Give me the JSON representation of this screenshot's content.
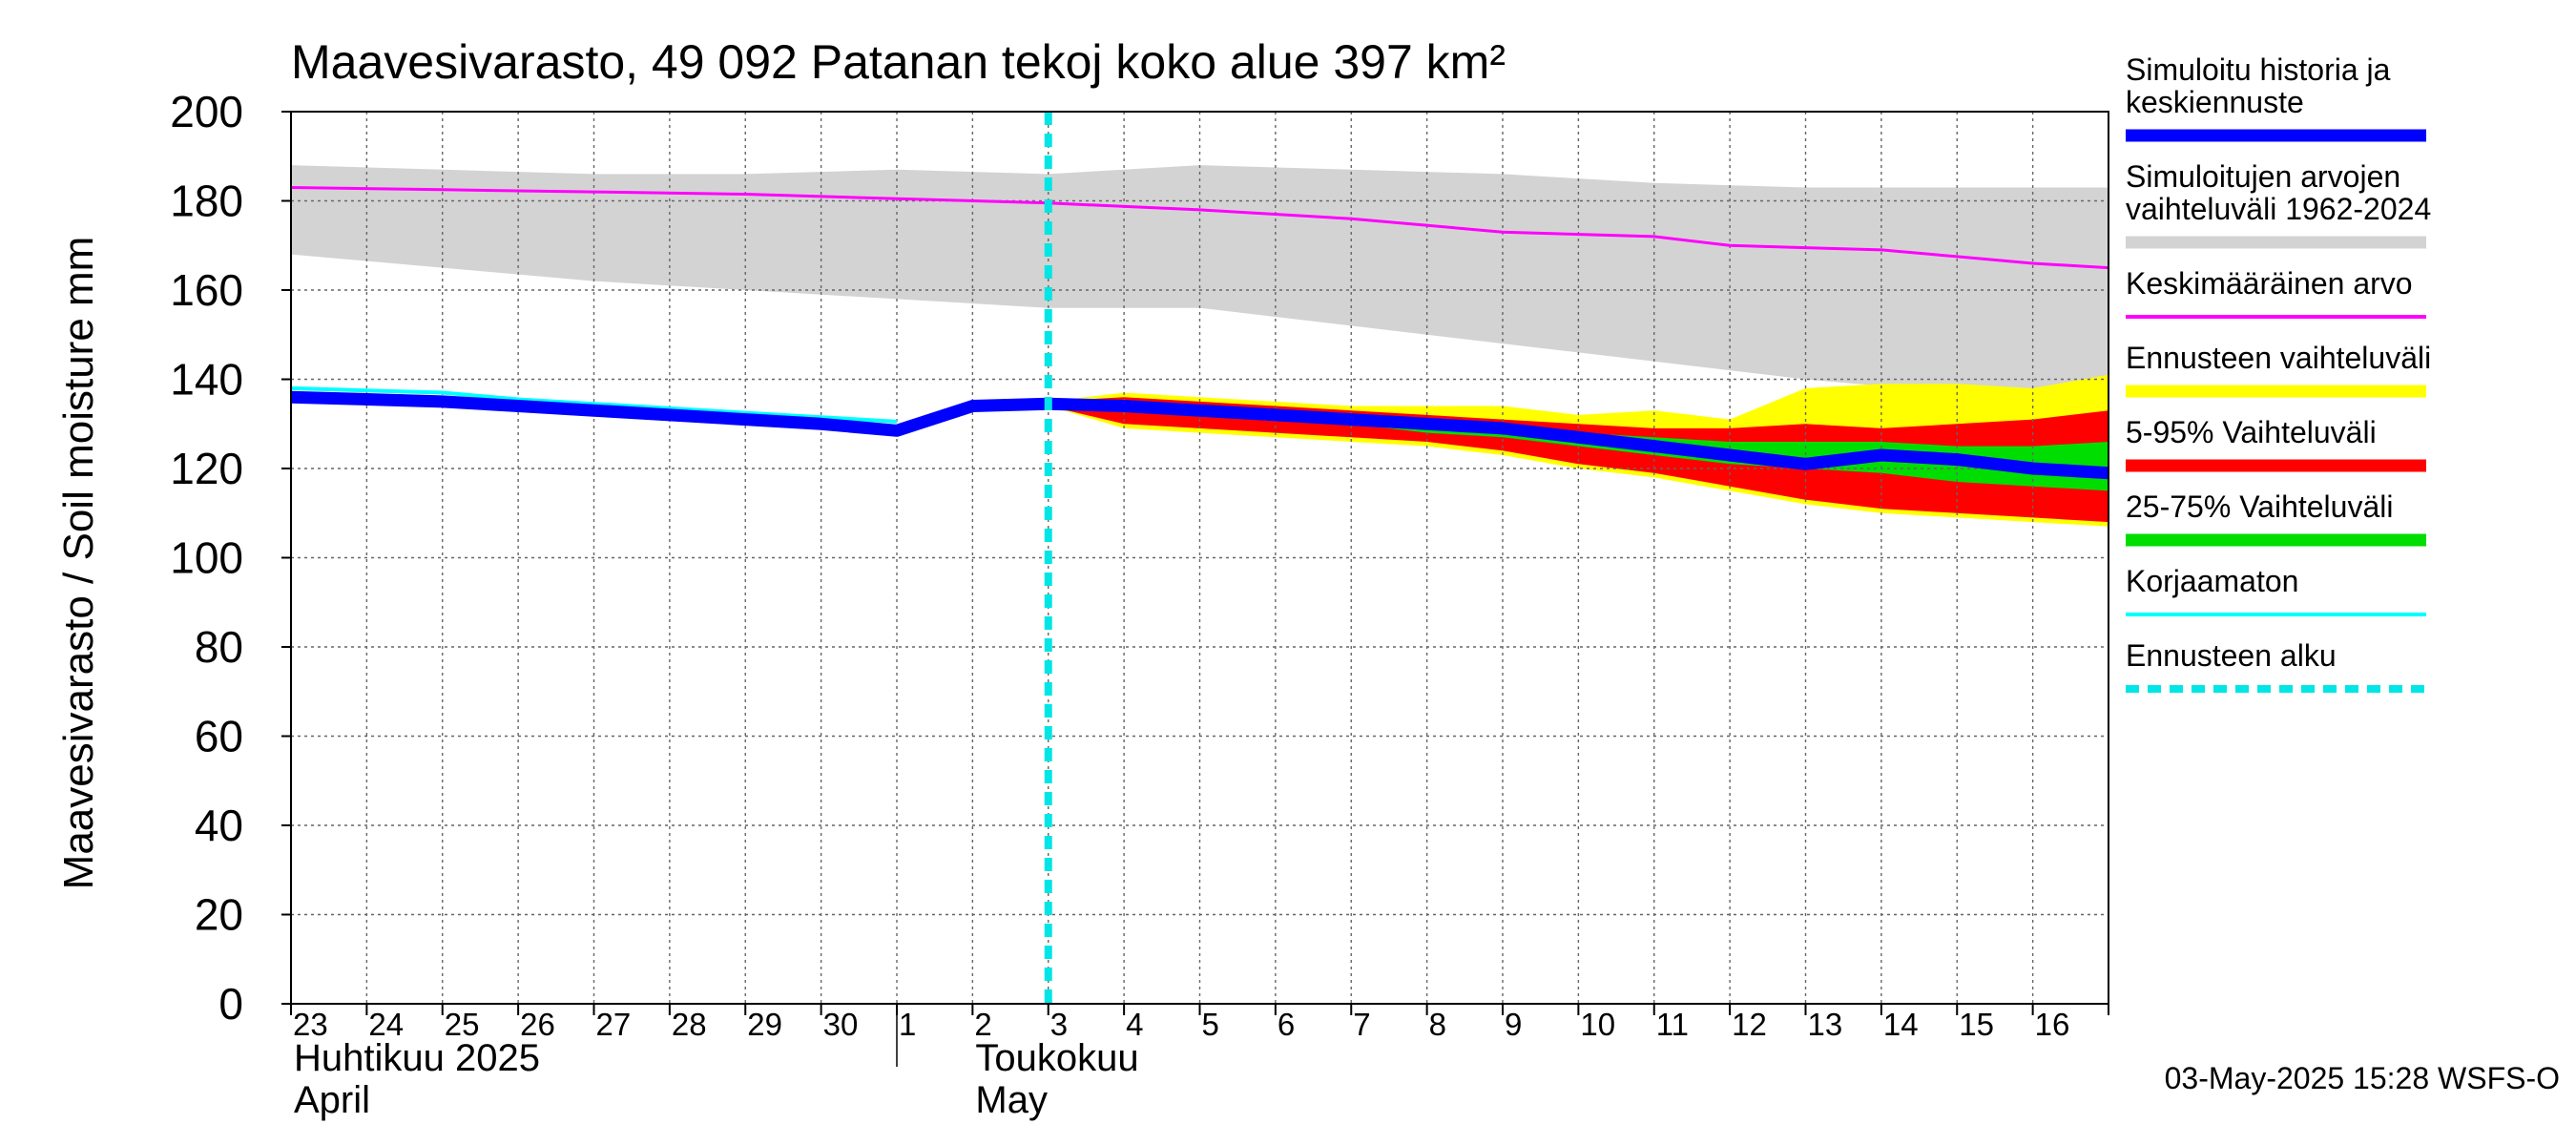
{
  "chart_data": {
    "type": "area",
    "title": "Maavesivarasto, 49 092 Patanan tekoj koko alue 397 km²",
    "ylabel": "Maavesivarasto / Soil moisture   mm",
    "ylim": [
      0,
      200
    ],
    "yticks": [
      0,
      20,
      40,
      60,
      80,
      100,
      120,
      140,
      160,
      180,
      200
    ],
    "x_start_day": 23,
    "x_end_day": 47,
    "x_tick_labels": [
      "23",
      "24",
      "25",
      "26",
      "27",
      "28",
      "29",
      "30",
      "1",
      "2",
      "3",
      "4",
      "5",
      "6",
      "7",
      "8",
      "9",
      "10",
      "11",
      "12",
      "13",
      "14",
      "15",
      "16"
    ],
    "month_labels": [
      {
        "line1": "Huhtikuu  2025",
        "line2": "April",
        "day": 23
      },
      {
        "line1": "Toukokuu",
        "line2": "May",
        "day": 32
      }
    ],
    "month_divider_day": 31,
    "forecast_start_day": 33,
    "timestamp": "03-May-2025 15:28 WSFS-O",
    "colors": {
      "history_range": "#d3d3d3",
      "mean": "#ff00ff",
      "forecast_range": "#ffff00",
      "range_5_95": "#ff0000",
      "range_25_75": "#00dd00",
      "simulated": "#0000ff",
      "uncorrected": "#00ffff",
      "forecast_start": "#00e5e5"
    },
    "legend": [
      {
        "label": "Simuloitu historia ja keskiennuste",
        "lines": [
          "Simuloitu historia ja",
          "keskiennuste"
        ],
        "color": "#0000ff",
        "style": "thick"
      },
      {
        "label": "Simuloitujen arvojen vaihteluväli 1962-2024",
        "lines": [
          "Simuloitujen arvojen",
          "vaihteluväli 1962-2024"
        ],
        "color": "#d3d3d3",
        "style": "thick"
      },
      {
        "label": "Keskimääräinen arvo",
        "lines": [
          "Keskimääräinen arvo"
        ],
        "color": "#ff00ff",
        "style": "thin"
      },
      {
        "label": "Ennusteen vaihteluväli",
        "lines": [
          "Ennusteen vaihteluväli"
        ],
        "color": "#ffff00",
        "style": "thick"
      },
      {
        "label": "5-95% Vaihteluväli",
        "lines": [
          "5-95% Vaihteluväli"
        ],
        "color": "#ff0000",
        "style": "thick"
      },
      {
        "label": "25-75% Vaihteluväli",
        "lines": [
          "25-75% Vaihteluväli"
        ],
        "color": "#00dd00",
        "style": "thick"
      },
      {
        "label": "Korjaamaton",
        "lines": [
          "Korjaamaton"
        ],
        "color": "#00ffff",
        "style": "thin"
      },
      {
        "label": "Ennusteen alku",
        "lines": [
          "Ennusteen alku"
        ],
        "color": "#00e5e5",
        "style": "dashed"
      }
    ],
    "series": {
      "history_range": {
        "x": [
          23,
          25,
          27,
          29,
          31,
          33,
          35,
          37,
          39,
          41,
          43,
          45,
          47
        ],
        "upper": [
          188,
          187,
          186,
          186,
          187,
          186,
          188,
          187,
          186,
          184,
          183,
          183,
          183
        ],
        "lower": [
          168,
          165,
          162,
          160,
          158,
          156,
          156,
          152,
          148,
          144,
          140,
          137,
          135
        ]
      },
      "mean": {
        "x": [
          23,
          25,
          27,
          29,
          31,
          33,
          35,
          37,
          39,
          41,
          42,
          43,
          44,
          45,
          46,
          47
        ],
        "values": [
          183,
          182.5,
          182,
          181.5,
          180.5,
          179.5,
          178,
          176,
          173,
          172,
          170,
          169.5,
          169,
          167.5,
          166,
          165
        ]
      },
      "forecast_range": {
        "x": [
          33,
          34,
          35,
          36,
          37,
          38,
          39,
          40,
          41,
          42,
          43,
          44,
          45,
          46,
          47
        ],
        "upper": [
          135,
          137,
          136,
          135,
          134,
          134,
          134,
          132,
          133,
          131,
          138,
          139,
          139,
          138,
          141
        ],
        "lower": [
          134,
          129,
          128,
          127,
          126,
          125,
          123,
          120,
          118,
          115,
          112,
          110,
          109,
          108,
          107
        ]
      },
      "range_5_95": {
        "x": [
          33,
          34,
          35,
          36,
          37,
          38,
          39,
          40,
          41,
          42,
          43,
          44,
          45,
          46,
          47
        ],
        "upper": [
          135,
          136,
          135,
          134,
          133,
          132,
          131,
          130,
          129,
          129,
          130,
          129,
          130,
          131,
          133
        ],
        "lower": [
          134,
          130,
          129,
          128,
          127,
          126,
          124,
          121,
          119,
          116,
          113,
          111,
          110,
          109,
          108
        ]
      },
      "range_25_75": {
        "x": [
          33,
          34,
          35,
          36,
          37,
          38,
          39,
          40,
          41,
          42,
          43,
          44,
          45,
          46,
          47
        ],
        "upper": [
          135,
          135,
          134,
          133,
          132,
          131,
          130,
          128,
          127,
          126,
          126,
          126,
          125,
          125,
          126
        ],
        "lower": [
          134,
          133,
          132,
          131,
          130,
          128,
          127,
          125,
          123,
          121,
          120,
          119,
          117,
          116,
          115
        ]
      },
      "simulated": {
        "x": [
          23,
          24,
          25,
          26,
          27,
          28,
          29,
          30,
          31,
          32,
          33,
          34,
          35,
          36,
          37,
          38,
          39,
          40,
          41,
          42,
          43,
          44,
          45,
          46,
          47
        ],
        "values": [
          136,
          135.5,
          135,
          134,
          133,
          132,
          131,
          130,
          128.5,
          134,
          134.5,
          134,
          133,
          132,
          131,
          130,
          129,
          127,
          125,
          123,
          121,
          123,
          122,
          120,
          119
        ]
      },
      "uncorrected": {
        "x": [
          23,
          24,
          25,
          26,
          27,
          28,
          29,
          30,
          31
        ],
        "values": [
          138,
          137.5,
          137,
          135.5,
          134.5,
          133.5,
          132.5,
          131.5,
          130.5
        ]
      }
    }
  }
}
